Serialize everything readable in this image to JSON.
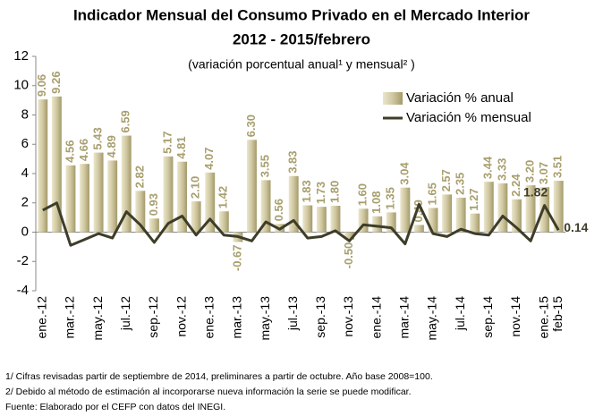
{
  "chart_data": {
    "type": "bar_line",
    "title": "Indicador Mensual del Consumo Privado en el Mercado Interior",
    "subtitle": "2012 - 2015/febrero",
    "note": "(variación porcentual anual¹ y mensual² )",
    "footnotes": [
      "1/ Cifras revisadas partir de septiembre de 2014, preliminares a partir de octubre. Año base 2008=100.",
      "2/ Debido al método de estimación al incorporarse nueva información la serie se puede modificar.",
      "Fuente: Elaborado por el CEFP con datos del INEGI."
    ],
    "categories": [
      "ene.-12",
      null,
      "mar.-12",
      null,
      "may.-12",
      null,
      "jul.-12",
      null,
      "sep.-12",
      null,
      "nov.-12",
      null,
      "ene.-13",
      null,
      "mar.-13",
      null,
      "may.-13",
      null,
      "jul.-13",
      null,
      "sep.-13",
      null,
      "nov.-13",
      null,
      "ene.-14",
      null,
      "mar.-14",
      null,
      "may.-14",
      null,
      "jul.-14",
      null,
      "sep.-14",
      null,
      "nov.-14",
      null,
      "ene.-15",
      "feb-15"
    ],
    "series": [
      {
        "name": "Variación % anual",
        "type": "bar",
        "color": "#cfc7a0",
        "values": [
          9.06,
          9.26,
          4.56,
          4.66,
          5.43,
          4.89,
          6.59,
          2.82,
          0.93,
          5.17,
          4.81,
          2.1,
          4.07,
          1.42,
          -0.67,
          6.3,
          3.55,
          0.56,
          3.83,
          1.83,
          1.73,
          1.8,
          -0.5,
          1.6,
          1.08,
          1.35,
          3.04,
          0.49,
          1.65,
          2.57,
          2.35,
          1.27,
          3.44,
          3.33,
          2.24,
          3.2,
          3.07,
          3.51
        ],
        "value_labels": [
          "9.06",
          "9.26",
          "4.56",
          "4.66",
          "5.43",
          "4.89",
          "6.59",
          "2.82",
          "0.93",
          "5.17",
          "4.81",
          "2.10",
          "4.07",
          "1.42",
          "-0.67",
          "6.30",
          "3.55",
          "0.56",
          "3.83",
          "1.83",
          "1.73",
          "1.80",
          "-0.50",
          "1.60",
          "1.08",
          "1.35",
          "3.04",
          "0.49",
          "1.65",
          "2.57",
          "2.35",
          "1.27",
          "3.44",
          "3.33",
          "2.24",
          "3.20",
          "3.07",
          "3.51"
        ]
      },
      {
        "name": "Variación % mensual",
        "type": "line",
        "color": "#3d3d29",
        "values": [
          1.5,
          2.0,
          -0.9,
          -0.5,
          -0.1,
          -0.4,
          1.4,
          0.5,
          -0.7,
          0.6,
          1.1,
          -0.2,
          0.9,
          -0.2,
          -0.3,
          -0.6,
          0.7,
          0.2,
          0.8,
          -0.4,
          -0.3,
          0.1,
          -0.6,
          0.5,
          0.4,
          0.3,
          -0.8,
          1.9,
          -0.1,
          -0.3,
          0.2,
          -0.1,
          -0.2,
          1.1,
          0.3,
          -0.6,
          1.82,
          0.14
        ],
        "value_labels": [
          null,
          null,
          null,
          null,
          null,
          null,
          null,
          null,
          null,
          null,
          null,
          null,
          null,
          null,
          null,
          null,
          null,
          null,
          null,
          null,
          null,
          null,
          null,
          null,
          null,
          null,
          null,
          null,
          null,
          null,
          null,
          null,
          null,
          null,
          null,
          null,
          "1.82",
          "0.14"
        ]
      }
    ],
    "ylim": [
      -4,
      12
    ],
    "yticks": [
      -4,
      -2,
      0,
      2,
      4,
      6,
      8,
      10,
      12
    ],
    "grid": false,
    "legend": "upper right"
  }
}
